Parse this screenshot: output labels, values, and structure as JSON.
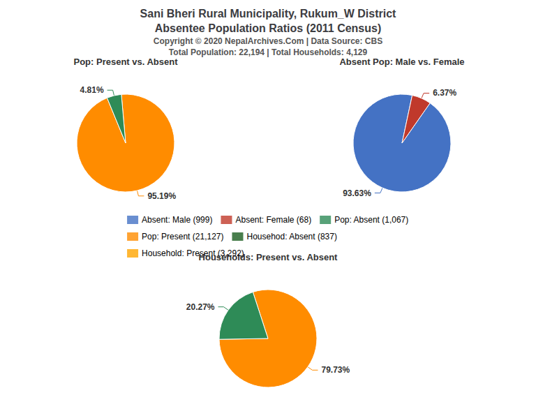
{
  "title": "Sani Bheri Rural Municipality, Rukum_W District",
  "subtitle": "Absentee Population Ratios (2011 Census)",
  "annotations": [
    "Copyright © 2020 NepalArchives.Com | Data Source: CBS",
    "Total Population: 22,194 | Total Households: 4,129"
  ],
  "legend": "center",
  "series": [
    {
      "name": "Absent: Male (999)",
      "color": "#4472C4"
    },
    {
      "name": "Absent: Female (68)",
      "color": "#C0392B"
    },
    {
      "name": "Pop: Absent (1,067)",
      "color": "#2E8B57"
    },
    {
      "name": "Pop: Present (21,127)",
      "color": "#FF8C00"
    },
    {
      "name": "Househod: Absent (837)",
      "color": "#1B5E20"
    },
    {
      "name": "Household: Present (3,292)",
      "color": "#FFA500"
    }
  ],
  "chart_data": [
    {
      "type": "pie",
      "title": "Pop: Present vs. Absent",
      "values": [
        95.19,
        4.81
      ],
      "value_labels": [
        "95.19%",
        "4.81%"
      ],
      "colors": [
        "#FF8C00",
        "#2E8B57"
      ],
      "data_labels": true
    },
    {
      "type": "pie",
      "title": "Absent Pop: Male vs. Female",
      "values": [
        93.63,
        6.37
      ],
      "value_labels": [
        "93.63%",
        "6.37%"
      ],
      "colors": [
        "#4472C4",
        "#C0392B"
      ],
      "data_labels": true
    },
    {
      "type": "pie",
      "title": "Households: Present vs. Absent",
      "values": [
        79.73,
        20.27
      ],
      "value_labels": [
        "79.73%",
        "20.27%"
      ],
      "colors": [
        "#FF8C00",
        "#2E8B57"
      ],
      "data_labels": true
    }
  ]
}
